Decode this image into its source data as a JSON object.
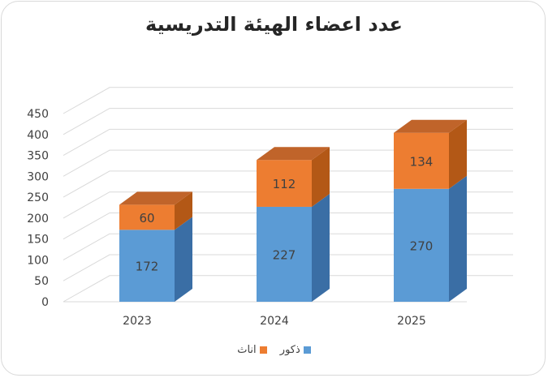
{
  "chart_data": {
    "type": "bar",
    "stacked": true,
    "title": "عدد اعضاء الهيئة التدريسية",
    "categories": [
      "2023",
      "2024",
      "2025"
    ],
    "series": [
      {
        "name": "ذكور",
        "values": [
          172,
          227,
          270
        ],
        "color": "#5b9bd5"
      },
      {
        "name": "اناث",
        "values": [
          60,
          112,
          134
        ],
        "color": "#ed7d31"
      }
    ],
    "ylim": [
      0,
      450
    ],
    "yticks": [
      0,
      50,
      100,
      150,
      200,
      250,
      300,
      350,
      400,
      450
    ],
    "grid": true,
    "legend": "bottom"
  }
}
